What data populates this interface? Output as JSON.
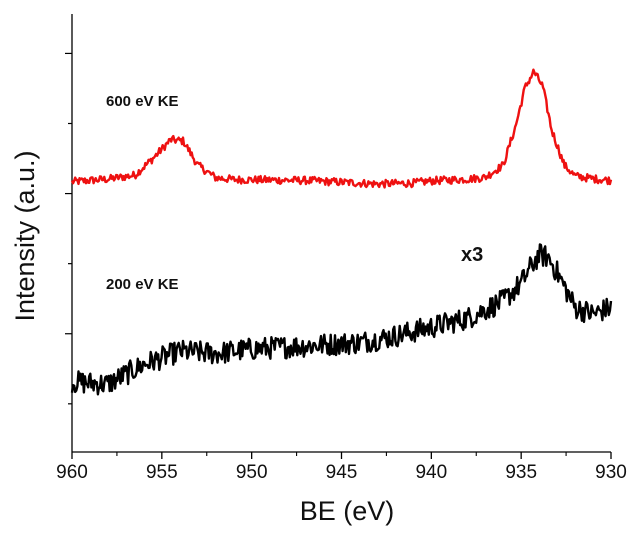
{
  "chart_data": {
    "type": "line",
    "xlabel": "BE (eV)",
    "ylabel": "Intensity (a.u.)",
    "x_ticks": [
      "960",
      "955",
      "950",
      "945",
      "940",
      "935",
      "930"
    ],
    "xlim": [
      960,
      930
    ],
    "x_reversed": true,
    "ylim": [
      0,
      100
    ],
    "y_tick_labels_shown": false,
    "grid": false,
    "series": [
      {
        "name": "600 eV KE",
        "color": "#ee1111",
        "x": [
          960,
          958,
          956.5,
          955.5,
          954.5,
          953.8,
          953,
          952,
          951,
          949,
          947,
          945,
          943,
          941,
          940,
          938,
          937,
          936,
          935.3,
          934.8,
          934.3,
          933.8,
          933.3,
          932.6,
          932,
          931,
          930
        ],
        "y": [
          61.7,
          62.3,
          63.2,
          67,
          71.3,
          71,
          65.5,
          62.6,
          62.2,
          62.1,
          62,
          61.6,
          61.2,
          61.4,
          61.9,
          62.3,
          62.7,
          65.5,
          74.5,
          83,
          86.9,
          83.5,
          73.5,
          65.5,
          63,
          62.4,
          62
        ]
      },
      {
        "name": "200 eV KE",
        "annotation": "x3",
        "color": "#000000",
        "x": [
          960,
          958,
          956,
          954,
          952,
          950,
          948,
          946,
          944,
          942,
          940,
          938,
          936,
          935,
          934.5,
          934,
          933.5,
          933,
          932.5,
          932,
          931,
          930
        ],
        "y": [
          16,
          15.5,
          20,
          23,
          22.5,
          23.5,
          24,
          24.5,
          25,
          26.5,
          28.5,
          30.5,
          34.5,
          38.5,
          42,
          45,
          44.5,
          41,
          37,
          33,
          31.5,
          33
        ]
      }
    ]
  }
}
